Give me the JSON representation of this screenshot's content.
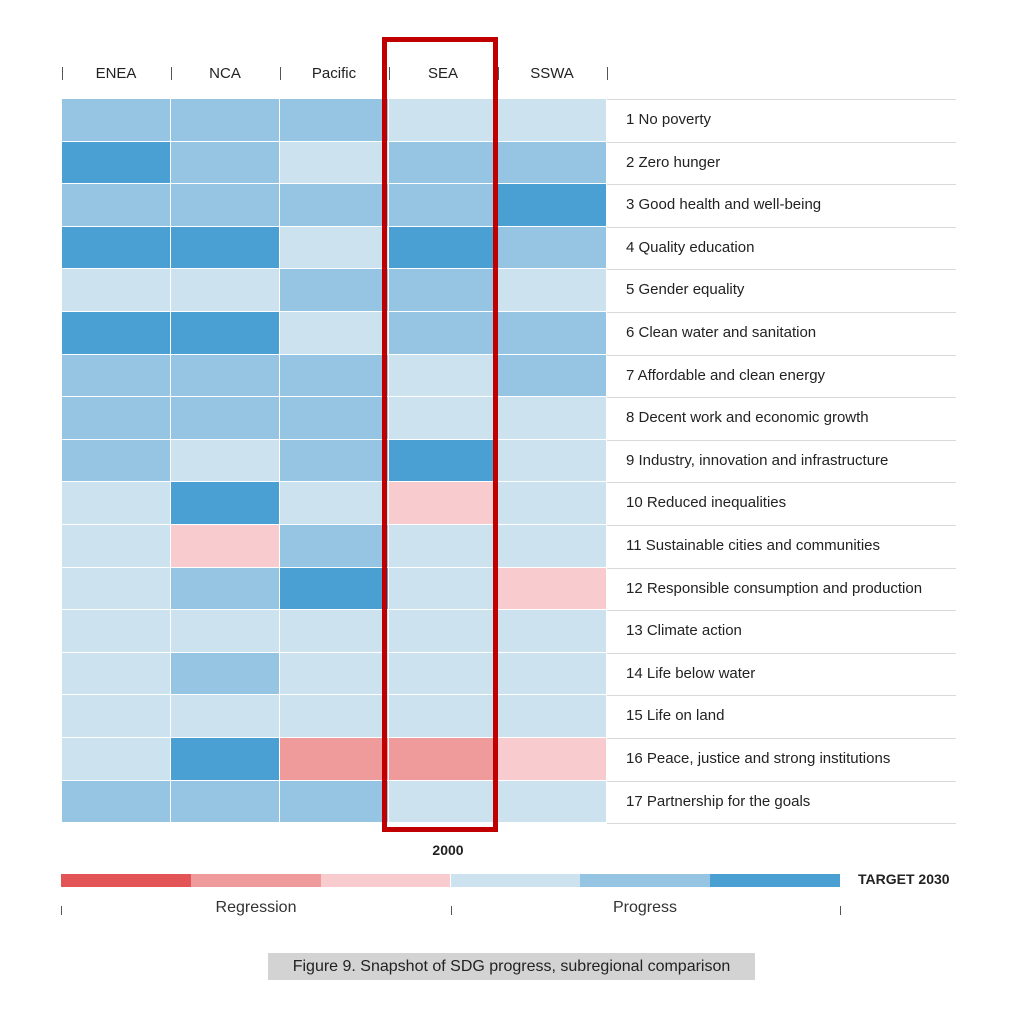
{
  "caption": "Figure 9. Snapshot of SDG progress, subregional comparison",
  "chart_data": {
    "type": "heatmap",
    "title": "",
    "columns": [
      "ENEA",
      "NCA",
      "Pacific",
      "SEA",
      "SSWA"
    ],
    "rows": [
      "1 No poverty",
      "2 Zero hunger",
      "3 Good health and well-being",
      "4 Quality education",
      "5 Gender equality",
      "6 Clean water and sanitation",
      "7 Affordable and clean energy",
      "8 Decent work and economic growth",
      "9 Industry, innovation and infrastructure",
      "10 Reduced inequalities",
      "11 Sustainable cities and communities",
      "12 Responsible consumption and production",
      "13 Climate action",
      "14 Life below water",
      "15 Life on land",
      "16 Peace, justice and strong institutions",
      "17 Partnership for the goals"
    ],
    "scale_levels": [
      -3,
      -2,
      -1,
      1,
      2,
      3
    ],
    "values": [
      [
        2,
        2,
        2,
        1,
        1
      ],
      [
        3,
        2,
        1,
        2,
        2
      ],
      [
        2,
        2,
        2,
        2,
        3
      ],
      [
        3,
        3,
        1,
        3,
        2
      ],
      [
        1,
        1,
        2,
        2,
        1
      ],
      [
        3,
        3,
        1,
        2,
        2
      ],
      [
        2,
        2,
        2,
        1,
        2
      ],
      [
        2,
        2,
        2,
        1,
        1
      ],
      [
        2,
        1,
        2,
        3,
        1
      ],
      [
        1,
        3,
        1,
        -1,
        1
      ],
      [
        1,
        -1,
        2,
        1,
        1
      ],
      [
        1,
        2,
        3,
        1,
        -1
      ],
      [
        1,
        1,
        1,
        1,
        1
      ],
      [
        1,
        2,
        1,
        1,
        1
      ],
      [
        1,
        1,
        1,
        1,
        1
      ],
      [
        1,
        3,
        -2,
        -2,
        -1
      ],
      [
        2,
        2,
        2,
        1,
        1
      ]
    ],
    "highlighted_column": "SEA",
    "base_year_label": "2000",
    "target_label": "TARGET 2030",
    "legend": {
      "left_label": "Regression",
      "right_label": "Progress"
    },
    "colors": {
      "-3": "#e35456",
      "-2": "#f09b9b",
      "-1": "#f8cbce",
      "1": "#cce2ef",
      "2": "#95c5e3",
      "3": "#4aa0d2"
    },
    "highlight_color": "#c00000"
  }
}
